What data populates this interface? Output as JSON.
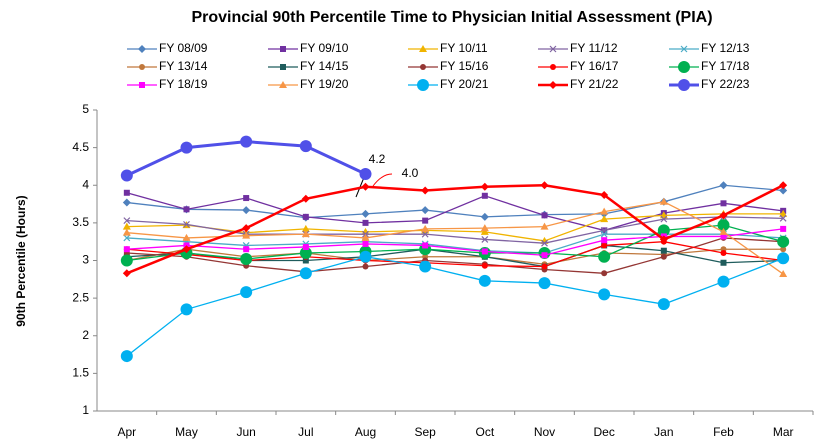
{
  "chart_data": {
    "type": "line",
    "title": "Provincial 90th Percentile Time to Physician Initial Assessment (PIA)",
    "y_label": "90th Percentile (Hours)",
    "categories": [
      "Apr",
      "May",
      "Jun",
      "Jul",
      "Aug",
      "Sep",
      "Oct",
      "Nov",
      "Dec",
      "Jan",
      "Feb",
      "Mar"
    ],
    "ylim": [
      1,
      5
    ],
    "yticks": [
      1,
      1.5,
      2,
      2.5,
      3,
      3.5,
      4,
      4.5,
      5
    ],
    "grid": false,
    "series": [
      {
        "name": "FY 08/09",
        "color": "#4f81bd",
        "marker": "diamond",
        "values": [
          3.77,
          3.68,
          3.67,
          3.57,
          3.62,
          3.67,
          3.58,
          3.61,
          3.62,
          3.78,
          4.0,
          3.93
        ]
      },
      {
        "name": "FY 09/10",
        "color": "#7030a0",
        "marker": "square",
        "values": [
          3.9,
          3.68,
          3.83,
          3.58,
          3.5,
          3.53,
          3.86,
          3.6,
          3.4,
          3.63,
          3.76,
          3.66
        ]
      },
      {
        "name": "FY 10/11",
        "color": "#f0b400",
        "marker": "triangle",
        "values": [
          3.45,
          3.47,
          3.37,
          3.42,
          3.38,
          3.4,
          3.38,
          3.26,
          3.55,
          3.6,
          3.62,
          3.62
        ]
      },
      {
        "name": "FY 11/12",
        "color": "#8064a2",
        "marker": "x",
        "values": [
          3.53,
          3.48,
          3.35,
          3.35,
          3.35,
          3.35,
          3.28,
          3.23,
          3.4,
          3.55,
          3.58,
          3.56
        ]
      },
      {
        "name": "FY 12/13",
        "color": "#4bacc6",
        "marker": "x",
        "values": [
          3.3,
          3.25,
          3.2,
          3.22,
          3.25,
          3.22,
          3.13,
          3.1,
          3.35,
          3.35,
          3.35,
          3.3
        ]
      },
      {
        "name": "FY 13/14",
        "color": "#c0783c",
        "marker": "circle",
        "values": [
          3.0,
          3.15,
          3.05,
          3.1,
          3.0,
          3.05,
          3.05,
          2.95,
          3.1,
          3.08,
          3.15,
          3.15
        ]
      },
      {
        "name": "FY 14/15",
        "color": "#1f5c5c",
        "marker": "square",
        "values": [
          3.05,
          3.1,
          3.0,
          3.0,
          3.05,
          3.15,
          3.05,
          2.92,
          3.2,
          3.13,
          2.97,
          3.0
        ]
      },
      {
        "name": "FY 15/16",
        "color": "#943634",
        "marker": "circle",
        "values": [
          3.1,
          3.05,
          2.93,
          2.85,
          2.92,
          3.0,
          2.95,
          2.88,
          2.83,
          3.05,
          3.3,
          3.25
        ]
      },
      {
        "name": "FY 16/17",
        "color": "#ff0000",
        "marker": "circle",
        "values": [
          3.15,
          3.08,
          3.0,
          3.05,
          3.0,
          2.97,
          2.93,
          2.92,
          3.2,
          3.25,
          3.1,
          3.0
        ]
      },
      {
        "name": "FY 17/18",
        "color": "#00b050",
        "marker": "bigcircle",
        "values": [
          3.0,
          3.1,
          3.02,
          3.1,
          3.12,
          3.15,
          3.1,
          3.1,
          3.05,
          3.4,
          3.47,
          3.25
        ]
      },
      {
        "name": "FY 18/19",
        "color": "#ff00ff",
        "marker": "square",
        "values": [
          3.15,
          3.2,
          3.15,
          3.18,
          3.22,
          3.2,
          3.12,
          3.07,
          3.27,
          3.32,
          3.32,
          3.42
        ]
      },
      {
        "name": "FY 19/20",
        "color": "#f79646",
        "marker": "triangle",
        "values": [
          3.37,
          3.3,
          3.33,
          3.35,
          3.3,
          3.42,
          3.43,
          3.45,
          3.65,
          3.78,
          3.38,
          2.82
        ]
      },
      {
        "name": "FY 20/21",
        "color": "#00b0f0",
        "marker": "bigcircle",
        "values": [
          1.73,
          2.35,
          2.58,
          2.83,
          3.05,
          2.92,
          2.73,
          2.7,
          2.55,
          2.42,
          2.72,
          3.03
        ]
      },
      {
        "name": "FY 21/22",
        "color": "#ff0000",
        "marker": "diamond",
        "width": 2.5,
        "values": [
          2.83,
          3.15,
          3.43,
          3.82,
          3.98,
          3.93,
          3.98,
          4.0,
          3.87,
          3.28,
          3.6,
          4.0
        ]
      },
      {
        "name": "FY 22/23",
        "color": "#5050e8",
        "marker": "bigcircle",
        "width": 3,
        "values": [
          4.13,
          4.5,
          4.58,
          4.52,
          4.15,
          null,
          null,
          null,
          null,
          null,
          null,
          null
        ]
      }
    ],
    "annotations": [
      "4.2",
      "4.0"
    ]
  }
}
